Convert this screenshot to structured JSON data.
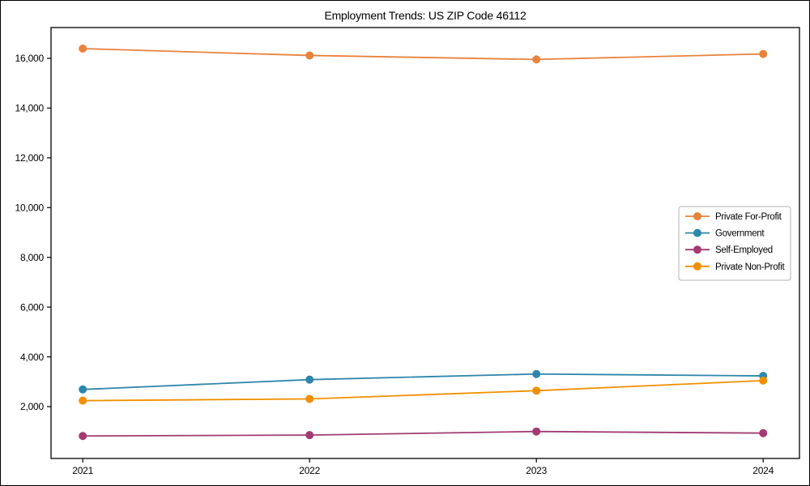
{
  "figure": {
    "title": "Employment Trends: US ZIP Code 46112"
  },
  "chart_data": {
    "type": "line",
    "title": "Employment Trends: US ZIP Code 46112",
    "xlabel": "",
    "ylabel": "",
    "x": [
      2021,
      2022,
      2023,
      2024
    ],
    "x_tick_labels": [
      "2021",
      "2022",
      "2023",
      "2024"
    ],
    "series": [
      {
        "name": "Private For-Profit",
        "color": "#E8823C",
        "values": [
          16390,
          16115,
          15955,
          16175
        ]
      },
      {
        "name": "Government",
        "color": "#2E86AB",
        "values": [
          2690,
          3085,
          3310,
          3235
        ]
      },
      {
        "name": "Self-Employed",
        "color": "#A23B72",
        "values": [
          820,
          855,
          1000,
          935
        ]
      },
      {
        "name": "Private Non-Profit",
        "color": "#F18F01",
        "values": [
          2240,
          2310,
          2640,
          3045
        ]
      }
    ],
    "yticks": [
      2000,
      4000,
      6000,
      8000,
      10000,
      12000,
      14000,
      16000
    ],
    "ytick_labels": [
      "2,000",
      "4,000",
      "6,000",
      "8,000",
      "10,000",
      "12,000",
      "14,000",
      "16,000"
    ],
    "ylim": [
      -84,
      17237
    ],
    "xlim": [
      2020.86,
      2024.16
    ],
    "grid": false,
    "legend_position": "center-right",
    "marker": "circle",
    "axis_color": "#000000",
    "legend_border_color": "#b3b3b3",
    "background_color": "#ffffff"
  }
}
